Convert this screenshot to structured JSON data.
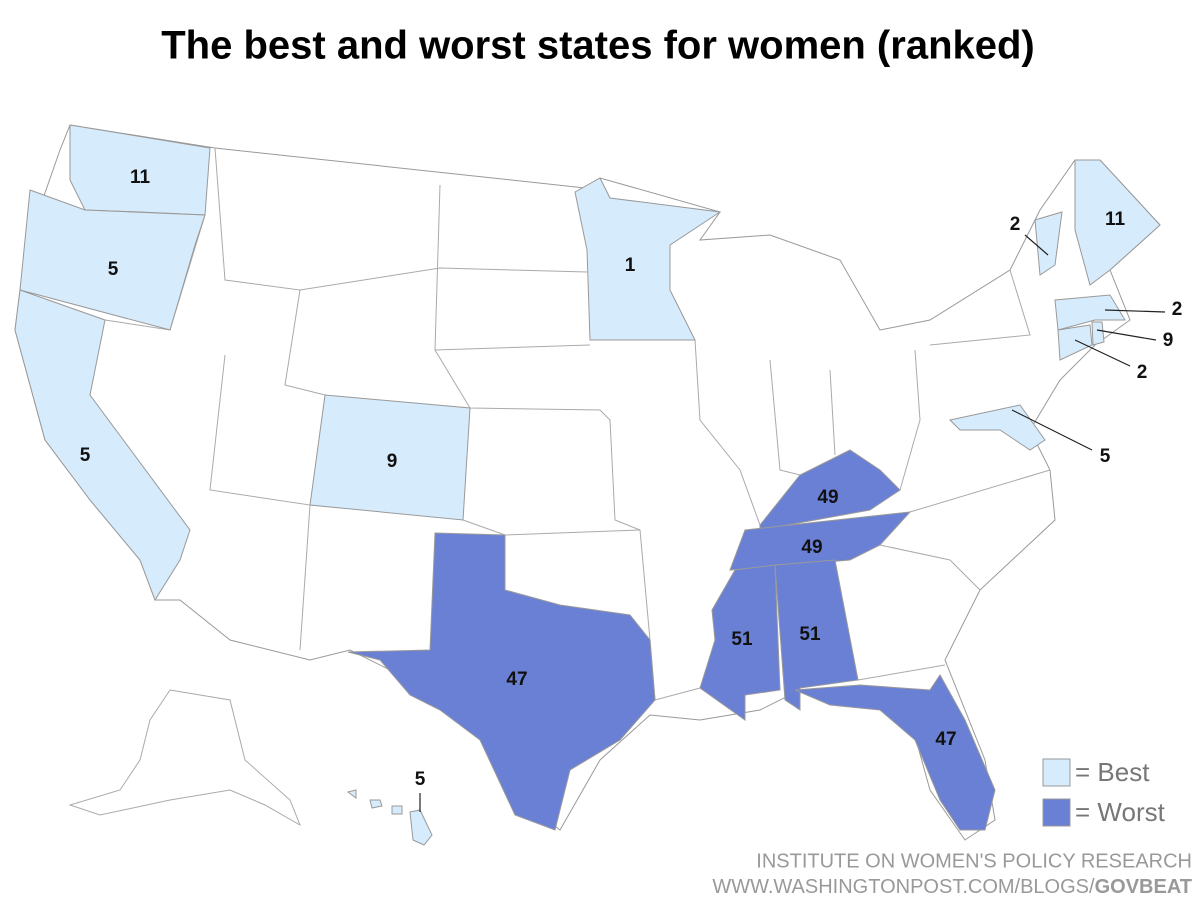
{
  "header": {
    "title": "The best and worst states for women (ranked)"
  },
  "map": {
    "best": {
      "legend": "= Best",
      "color": "#d6ebfc",
      "ranks": [
        11,
        5,
        5,
        9,
        1,
        2,
        11,
        2,
        9,
        2,
        5,
        5
      ]
    },
    "worst": {
      "legend": "= Worst",
      "color": "#6a80d5",
      "ranks": [
        49,
        49,
        51,
        51,
        47,
        47
      ]
    }
  },
  "source": {
    "line1": "INSTITUTE ON WOMEN'S POLICY RESEARCH",
    "url": "WWW.WASHINGTONPOST.COM/BLOGS/",
    "url_bold": "GOVBEAT"
  }
}
